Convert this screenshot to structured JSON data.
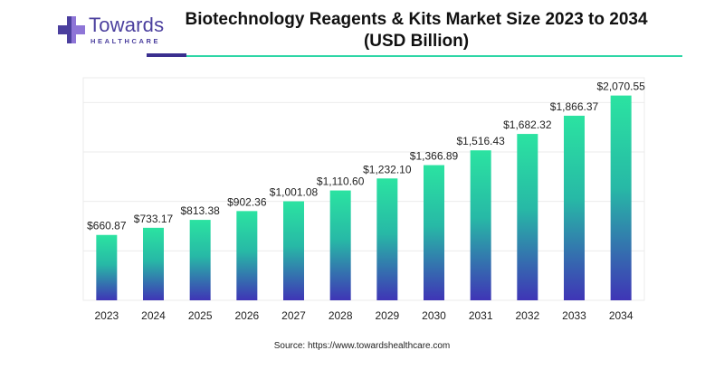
{
  "brand": {
    "name": "Towards",
    "tagline": "HEALTHCARE",
    "colors": {
      "primary": "#4b3f9e",
      "accent": "#2ed6a6"
    }
  },
  "header": {
    "title_line1": "Biotechnology Reagents & Kits Market Size 2023 to 2034",
    "title_line2": "(USD Billion)"
  },
  "source_text": "Source: https://www.towardshealthcare.com",
  "chart_data": {
    "type": "bar",
    "title": "Biotechnology Reagents & Kits Market Size 2023 to 2034 (USD Billion)",
    "xlabel": "",
    "ylabel": "",
    "categories": [
      "2023",
      "2024",
      "2025",
      "2026",
      "2027",
      "2028",
      "2029",
      "2030",
      "2031",
      "2032",
      "2033",
      "2034"
    ],
    "values": [
      660.87,
      733.17,
      813.38,
      902.36,
      1001.08,
      1110.6,
      1232.1,
      1366.89,
      1516.43,
      1682.32,
      1866.37,
      2070.55
    ],
    "labels": [
      "$660.87",
      "$733.17",
      "$813.38",
      "$902.36",
      "$1,001.08",
      "$1,110.60",
      "$1,232.10",
      "$1,366.89",
      "$1,516.43",
      "$1,682.32",
      "$1,866.37",
      "$2,070.55"
    ],
    "ylim": [
      0,
      2250
    ],
    "grid": true,
    "legend": "none",
    "bar_gradient": {
      "top": "#2be3a1",
      "bottom": "#3f35b6"
    },
    "grid_color": "#ebebeb"
  }
}
